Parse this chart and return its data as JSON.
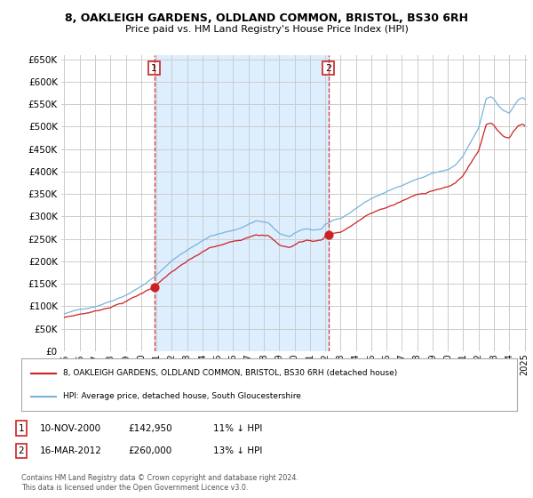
{
  "title": "8, OAKLEIGH GARDENS, OLDLAND COMMON, BRISTOL, BS30 6RH",
  "subtitle": "Price paid vs. HM Land Registry's House Price Index (HPI)",
  "background_color": "#ffffff",
  "chart_bg_color": "#ffffff",
  "shaded_region_color": "#ddeeff",
  "grid_color": "#cccccc",
  "ylim": [
    0,
    660000
  ],
  "yticks": [
    0,
    50000,
    100000,
    150000,
    200000,
    250000,
    300000,
    350000,
    400000,
    450000,
    500000,
    550000,
    600000,
    650000
  ],
  "sale1_date": 2000.86,
  "sale1_price": 142950,
  "sale1_label": "1",
  "sale2_date": 2012.21,
  "sale2_price": 260000,
  "sale2_label": "2",
  "hpi_line_color": "#7ab3d9",
  "price_line_color": "#cc2222",
  "dashed_line_color": "#cc2222",
  "shade_color": "#ddeeff",
  "legend_label1": "8, OAKLEIGH GARDENS, OLDLAND COMMON, BRISTOL, BS30 6RH (detached house)",
  "legend_label2": "HPI: Average price, detached house, South Gloucestershire",
  "annotation1_date": "10-NOV-2000",
  "annotation1_price": "£142,950",
  "annotation1_hpi": "11% ↓ HPI",
  "annotation2_date": "16-MAR-2012",
  "annotation2_price": "£260,000",
  "annotation2_hpi": "13% ↓ HPI",
  "footer": "Contains HM Land Registry data © Crown copyright and database right 2024.\nThis data is licensed under the Open Government Licence v3.0.",
  "xmin": 1995,
  "xmax": 2025
}
